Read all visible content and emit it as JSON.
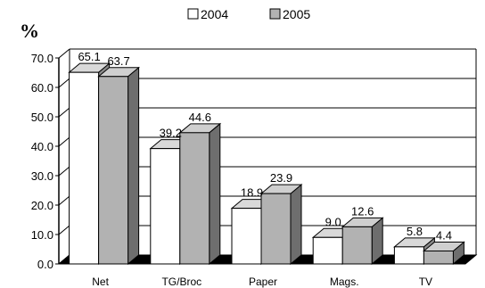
{
  "chart_data": {
    "type": "bar",
    "unit_label": "%",
    "categories": [
      "Net",
      "TG/Broc",
      "Paper",
      "Mags.",
      "TV"
    ],
    "series": [
      {
        "name": "2004",
        "values": [
          65.1,
          39.2,
          18.9,
          9.0,
          5.8
        ],
        "labels": [
          "65.1",
          "39.2",
          "18.9",
          "9.0",
          "5.8"
        ],
        "color": "#ffffff"
      },
      {
        "name": "2005",
        "values": [
          63.7,
          44.6,
          23.9,
          12.6,
          4.4
        ],
        "labels": [
          "63.7",
          "44.6",
          "23.9",
          "12.6",
          "4.4"
        ],
        "color": "#b2b2b2"
      }
    ],
    "yticks": [
      "0.0",
      "10.0",
      "20.0",
      "30.0",
      "40.0",
      "50.0",
      "60.0",
      "70.0"
    ],
    "ylim": [
      0,
      70
    ],
    "grid": true,
    "legend_position": "top",
    "style": "3d-clustered-column"
  }
}
